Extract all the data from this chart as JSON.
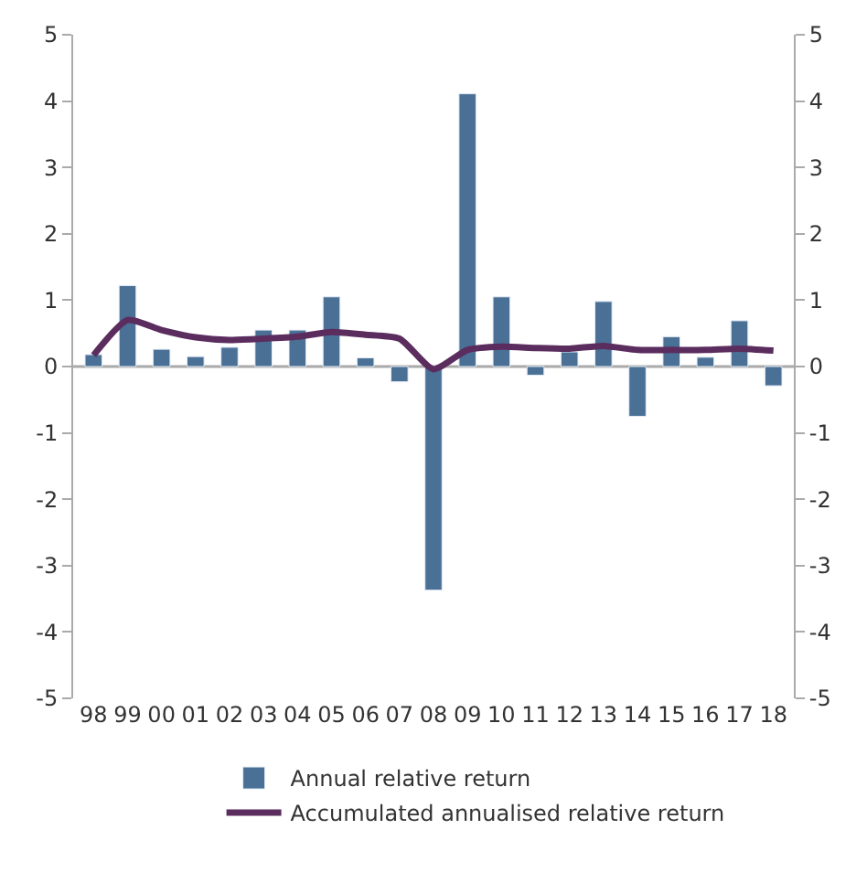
{
  "chart_data": {
    "type": "bar",
    "categories": [
      "98",
      "99",
      "00",
      "01",
      "02",
      "03",
      "04",
      "05",
      "06",
      "07",
      "08",
      "09",
      "10",
      "11",
      "12",
      "13",
      "14",
      "15",
      "16",
      "17",
      "18"
    ],
    "series": [
      {
        "name": "Annual relative return",
        "color": "#4a7096",
        "values": [
          0.18,
          1.22,
          0.26,
          0.15,
          0.29,
          0.55,
          0.55,
          1.05,
          0.13,
          -0.23,
          -3.37,
          4.11,
          1.05,
          -0.13,
          0.22,
          0.98,
          -0.75,
          0.45,
          0.14,
          0.69,
          -0.29
        ]
      },
      {
        "name": "Accumulated annualised relative return",
        "type": "line",
        "color": "#5b2c5e",
        "values": [
          0.17,
          0.7,
          0.55,
          0.44,
          0.4,
          0.42,
          0.45,
          0.52,
          0.48,
          0.42,
          -0.04,
          0.25,
          0.3,
          0.28,
          0.27,
          0.31,
          0.25,
          0.25,
          0.25,
          0.27,
          0.24
        ]
      }
    ],
    "ylim": [
      -5,
      5
    ],
    "yticks": [
      -5,
      -4,
      -3,
      -2,
      -1,
      0,
      1,
      2,
      3,
      4,
      5
    ],
    "y2lim": [
      -5,
      5
    ],
    "y2ticks": [
      -5,
      -4,
      -3,
      -2,
      -1,
      0,
      1,
      2,
      3,
      4,
      5
    ],
    "ref_lines": [
      {
        "axis": "y",
        "value": 0
      }
    ],
    "grid": false,
    "legend": "bottom",
    "marker": "none",
    "line_style": "solid"
  }
}
